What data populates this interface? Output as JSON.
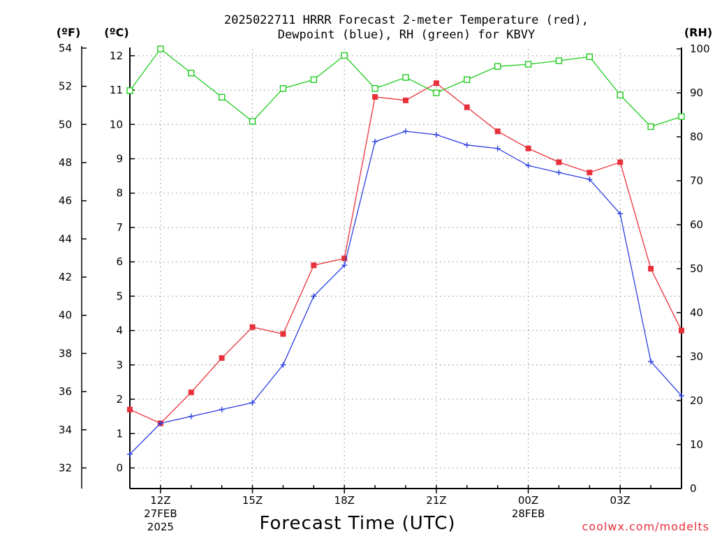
{
  "title": {
    "line1": "2025022711 HRRR Forecast 2-meter Temperature (red),",
    "line2": "Dewpoint (blue), RH (green) for KBVY"
  },
  "units": {
    "fahrenheit": "(ºF)",
    "celsius": "(ºC)",
    "rh": "(RH)"
  },
  "xlabel": "Forecast Time (UTC)",
  "credit": "coolwx.com/modelts",
  "colors": {
    "temperature": "#e8303a",
    "dewpoint": "#2a3fe0",
    "rh": "#1ecc1e",
    "grid": "#888888"
  },
  "chart_data": {
    "type": "line",
    "x": [
      "11Z",
      "12Z",
      "13Z",
      "14Z",
      "15Z",
      "16Z",
      "17Z",
      "18Z",
      "19Z",
      "20Z",
      "21Z",
      "22Z",
      "23Z",
      "00Z",
      "01Z",
      "02Z",
      "03Z",
      "04Z",
      "05Z"
    ],
    "x_tick_labels": [
      {
        "hour": "12Z",
        "date": "27FEB",
        "year": "2025"
      },
      {
        "hour": "15Z",
        "date": "",
        "year": ""
      },
      {
        "hour": "18Z",
        "date": "",
        "year": ""
      },
      {
        "hour": "21Z",
        "date": "",
        "year": ""
      },
      {
        "hour": "00Z",
        "date": "28FEB",
        "year": ""
      },
      {
        "hour": "03Z",
        "date": "",
        "year": ""
      }
    ],
    "series": [
      {
        "name": "Temperature",
        "axis": "celsius",
        "marker": "filled-square",
        "values": [
          1.7,
          1.3,
          2.2,
          3.2,
          4.1,
          3.9,
          5.9,
          6.1,
          10.8,
          10.7,
          11.2,
          10.5,
          9.8,
          9.3,
          8.9,
          8.6,
          8.9,
          5.8,
          4.0
        ]
      },
      {
        "name": "Dewpoint",
        "axis": "celsius",
        "marker": "plus",
        "values": [
          0.4,
          1.3,
          1.5,
          1.7,
          1.9,
          3.0,
          5.0,
          5.9,
          9.5,
          9.8,
          9.7,
          9.4,
          9.3,
          8.8,
          8.6,
          8.4,
          7.4,
          3.1,
          2.1
        ]
      },
      {
        "name": "RH",
        "axis": "rh",
        "marker": "open-square",
        "values": [
          90.5,
          100,
          94.5,
          89,
          83.5,
          91,
          93,
          98.5,
          91,
          93.5,
          90,
          93,
          96,
          96.5,
          97.3,
          98.2,
          89.5,
          82.3,
          84.6
        ]
      }
    ],
    "axes": {
      "fahrenheit": {
        "ticks": [
          32,
          34,
          36,
          38,
          40,
          42,
          44,
          46,
          48,
          50,
          52,
          54
        ]
      },
      "celsius": {
        "ticks": [
          0,
          1,
          2,
          3,
          4,
          5,
          6,
          7,
          8,
          9,
          10,
          11,
          12
        ],
        "ylim": [
          -0.6,
          12.2
        ]
      },
      "rh": {
        "ticks": [
          0,
          10,
          20,
          30,
          40,
          50,
          60,
          70,
          80,
          90,
          100
        ],
        "ylim": [
          0,
          100
        ]
      }
    },
    "grid": true
  }
}
